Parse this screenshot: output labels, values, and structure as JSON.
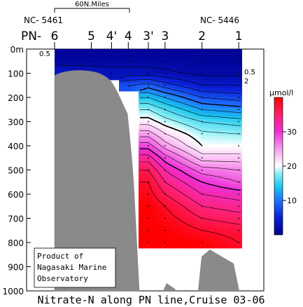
{
  "chart_data": {
    "type": "heatmap",
    "title": "Nitrate-N along PN line,Cruise 03-06",
    "unit_label": "μmol/l",
    "scale_bar_label": "60N.Miles",
    "station_group_left": "NC- 5461",
    "station_group_right": "NC- 5446",
    "station_prefix": "PN-",
    "stations": [
      {
        "label": "6",
        "pos": 0.0
      },
      {
        "label": "5",
        "pos": 0.196
      },
      {
        "label": "4'",
        "pos": 0.304
      },
      {
        "label": "4",
        "pos": 0.393
      },
      {
        "label": "3'",
        "pos": 0.5
      },
      {
        "label": "3",
        "pos": 0.589
      },
      {
        "label": "2",
        "pos": 0.786
      },
      {
        "label": "1",
        "pos": 0.982
      }
    ],
    "y_axis": {
      "ticks": [
        "0m",
        "100",
        "200",
        "300",
        "400",
        "500",
        "600",
        "700",
        "800",
        "900",
        "1000"
      ],
      "range": [
        0,
        1000
      ]
    },
    "colorbar": {
      "ticks": [
        "10",
        "20",
        "30"
      ],
      "range": [
        0,
        40
      ]
    },
    "contour_labels": [
      "0.5",
      "0.5",
      "2"
    ],
    "stops": [
      {
        "v": 0,
        "color": "#000090"
      },
      {
        "v": 5,
        "color": "#0a1fd6"
      },
      {
        "v": 10,
        "color": "#1f72ff"
      },
      {
        "v": 14,
        "color": "#19c6ee"
      },
      {
        "v": 18,
        "color": "#8ff0f5"
      },
      {
        "v": 20,
        "color": "#ffffff"
      },
      {
        "v": 24,
        "color": "#f9b3f1"
      },
      {
        "v": 30,
        "color": "#ee2fd8"
      },
      {
        "v": 35,
        "color": "#ff1f6a"
      },
      {
        "v": 40,
        "color": "#ff0000"
      }
    ],
    "profile_depths": [
      0,
      50,
      100,
      150,
      200,
      250,
      300,
      350,
      400,
      450,
      500,
      550,
      600,
      650,
      700,
      750,
      800
    ],
    "profiles": [
      {
        "station": "6",
        "values": [
          0.5,
          1,
          4
        ]
      },
      {
        "station": "5",
        "values": [
          0.5,
          1,
          3.5
        ]
      },
      {
        "station": "4'",
        "values": [
          0.5,
          1,
          3
        ]
      },
      {
        "station": "4",
        "values": [
          0.5,
          1,
          3,
          8
        ]
      },
      {
        "station": "3'",
        "values": [
          0.5,
          1,
          3,
          9,
          14,
          18,
          21,
          25,
          29,
          33,
          36,
          38,
          39,
          40,
          40,
          40,
          40
        ]
      },
      {
        "station": "3",
        "values": [
          0.5,
          1,
          2.5,
          7,
          12,
          16,
          19,
          22,
          25,
          29,
          32,
          34,
          36,
          38,
          39,
          40,
          40
        ]
      },
      {
        "station": "2",
        "values": [
          0.5,
          0.8,
          1.5,
          4,
          8,
          12,
          16,
          18.5,
          20,
          23,
          27,
          30,
          32,
          34,
          36,
          38,
          40
        ]
      },
      {
        "station": "1",
        "values": [
          0.5,
          0.8,
          1.5,
          4,
          7,
          11,
          15,
          18,
          20,
          23,
          26,
          28,
          31,
          33,
          35,
          37,
          38
        ]
      }
    ],
    "credit": [
      "Product of",
      "Nagasaki Marine",
      "Observatory"
    ]
  }
}
